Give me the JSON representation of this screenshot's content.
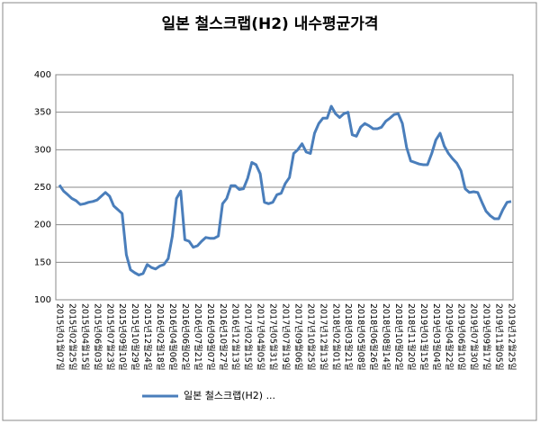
{
  "chart_data": {
    "type": "line",
    "title": "일본 철스크랩(H2) 내수평균가격",
    "categories": [
      "2015년01월07일",
      null,
      null,
      "2015년02월25일",
      null,
      null,
      "2015년04월15일",
      null,
      null,
      "2015년06월03일",
      null,
      null,
      "2015년07월23일",
      null,
      null,
      "2015년09월10일",
      null,
      null,
      "2015년10월29일",
      null,
      null,
      "2015년12월24일",
      null,
      null,
      "2016년02월18일",
      null,
      null,
      "2016년04월06일",
      null,
      null,
      "2016년06월02일",
      null,
      null,
      "2016년07월21일",
      null,
      null,
      "2016년09월07일",
      null,
      null,
      "2016년10월27일",
      null,
      null,
      "2016년12월13일",
      null,
      null,
      "2017년02월15일",
      null,
      null,
      "2017년04월05일",
      null,
      null,
      "2017년05월31일",
      null,
      null,
      "2017년07월19일",
      null,
      null,
      "2017년09월06일",
      null,
      null,
      "2017년10월25일",
      null,
      null,
      "2017년12월13일",
      null,
      null,
      "2018년02월01일",
      null,
      null,
      "2018년03월21일",
      null,
      null,
      "2018년05월08일",
      null,
      null,
      "2018년06월26일",
      null,
      null,
      "2018년08월14일",
      null,
      null,
      "2018년10월02일",
      null,
      null,
      "2018년11월20일",
      null,
      null,
      "2019년01월15일",
      null,
      null,
      "2019년03월04일",
      null,
      null,
      "2019년04월22일",
      null,
      null,
      "2019년06월10일",
      null,
      null,
      "2019년07월30일",
      null,
      null,
      "2019년09월17일",
      null,
      null,
      "2019년11월05일",
      null,
      null,
      "2019년12월25일"
    ],
    "series": [
      {
        "name": "일본 철스크랩(H2) ...",
        "color": "#4a7ebb",
        "values": [
          253,
          245,
          240,
          235,
          232,
          227,
          228,
          230,
          231,
          233,
          238,
          243,
          238,
          225,
          220,
          215,
          160,
          140,
          136,
          133,
          135,
          147,
          143,
          141,
          145,
          147,
          155,
          185,
          235,
          245,
          180,
          178,
          170,
          172,
          178,
          183,
          182,
          182,
          185,
          228,
          235,
          252,
          252,
          247,
          248,
          262,
          283,
          280,
          268,
          230,
          228,
          230,
          240,
          242,
          255,
          263,
          295,
          300,
          308,
          297,
          295,
          322,
          335,
          342,
          342,
          358,
          348,
          343,
          348,
          350,
          320,
          318,
          330,
          335,
          332,
          328,
          328,
          330,
          338,
          342,
          347,
          348,
          335,
          303,
          285,
          283,
          281,
          280,
          280,
          295,
          313,
          322,
          305,
          295,
          288,
          282,
          272,
          248,
          243,
          244,
          243,
          230,
          218,
          212,
          208,
          208,
          220,
          230,
          231
        ]
      }
    ],
    "ylim": [
      100,
      400
    ],
    "yticks": [
      100,
      150,
      200,
      250,
      300,
      350,
      400
    ],
    "grid": true
  }
}
